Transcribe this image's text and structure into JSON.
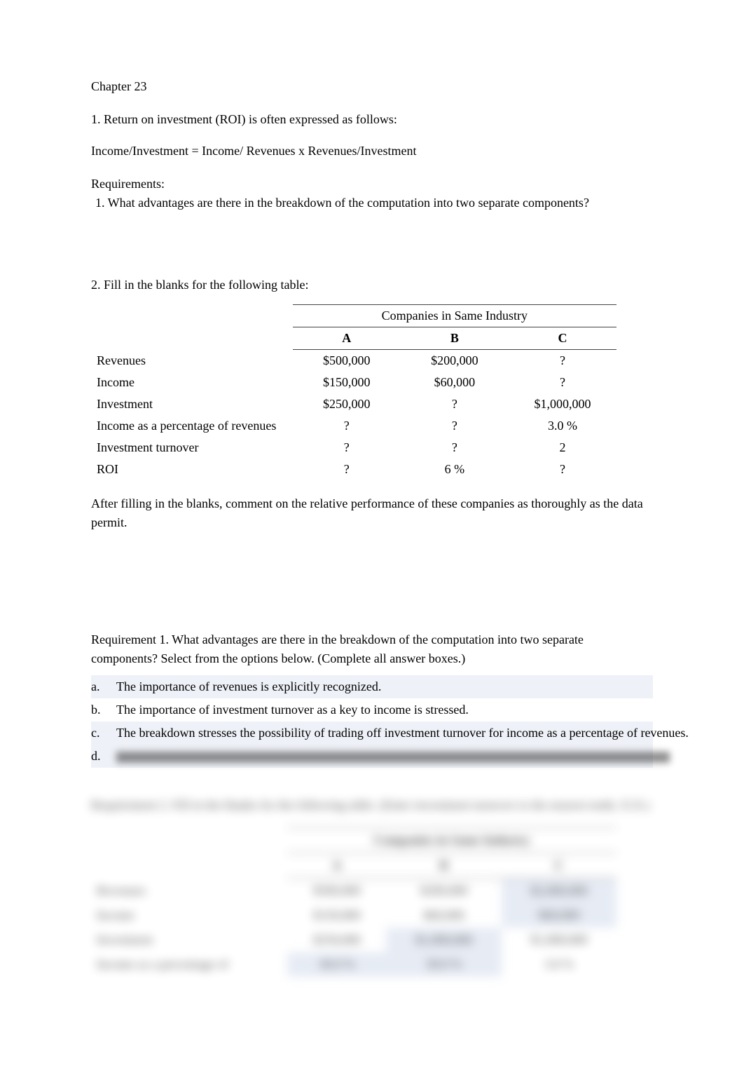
{
  "chapter": {
    "title": "Chapter 23"
  },
  "q1": {
    "prompt": "1. Return on investment (ROI) is often expressed as follows:",
    "formula": "Income/Investment  =   Income/ Revenues   x    Revenues/Investment",
    "requirements_label": "Requirements:",
    "req1": " 1. What advantages are there in the breakdown of the computation into two separate components?"
  },
  "q2": {
    "prompt": "2. Fill in the blanks for the following table:",
    "table": {
      "header_span": "Companies in Same Industry",
      "col_a": "A",
      "col_b": "B",
      "col_c": "C",
      "rows": [
        {
          "label": "Revenues",
          "a": "$500,000",
          "b": "$200,000",
          "c": "?"
        },
        {
          "label": "Income",
          "a": "$150,000",
          "b": "$60,000",
          "c": "?"
        },
        {
          "label": "Investment",
          "a": "$250,000",
          "b": "?",
          "c": "$1,000,000"
        },
        {
          "label": "Income as a percentage of revenues",
          "a": "?",
          "b": "?",
          "c": "3.0 %"
        },
        {
          "label": "Investment turnover",
          "a": "?",
          "b": "?",
          "c": "2"
        },
        {
          "label": "ROI",
          "a": "?",
          "b": "6 %",
          "c": "?"
        }
      ]
    },
    "after_text": "After filling in the blanks, comment on the relative performance of these companies as thoroughly as the data permit."
  },
  "req1_answers": {
    "intro": "Requirement 1. What advantages are there in the breakdown of the computation into two separate components? Select from the options below. (Complete all answer boxes.)",
    "options": [
      {
        "letter": "a.",
        "text": "The importance of revenues is explicitly recognized.",
        "highlighted": true
      },
      {
        "letter": "b.",
        "text": "The importance of investment turnover as a key to income is stressed.",
        "highlighted": false
      },
      {
        "letter": "c.",
        "text": "The breakdown stresses the possibility of trading off investment turnover for income as a percentage of revenues.",
        "highlighted": true,
        "wrap_top": true
      },
      {
        "letter": "d.",
        "text": "",
        "highlighted": true,
        "redacted": true
      }
    ]
  },
  "blurred": {
    "line1": "Requirement 2. Fill in the blanks for the following table. (Enter investment turnover to the nearest tenth, X.X.)",
    "header_span": "Companies in Same Industry",
    "col_a": "A",
    "col_b": "B",
    "col_c": "C",
    "rows": [
      {
        "label": "Revenues",
        "a": "$500,000",
        "b": "$200,000",
        "c": "$2,000,000",
        "hl_c": true
      },
      {
        "label": "Income",
        "a": "$150,000",
        "b": "$60,000",
        "c": "$60,000",
        "hl_c": true
      },
      {
        "label": "Investment",
        "a": "$250,000",
        "b": "$1,000,000",
        "c": "$1,000,000",
        "hl_b": true
      },
      {
        "label": "Income as a percentage of",
        "a": "30.0 %",
        "b": "30.0 %",
        "c": "3.0 %",
        "hl_a": true,
        "hl_b": true
      }
    ]
  },
  "colors": {
    "text": "#000000",
    "background": "#ffffff",
    "highlight_row": "#eef1f7",
    "highlight_cell": "#dce3f0",
    "border": "#444444"
  }
}
